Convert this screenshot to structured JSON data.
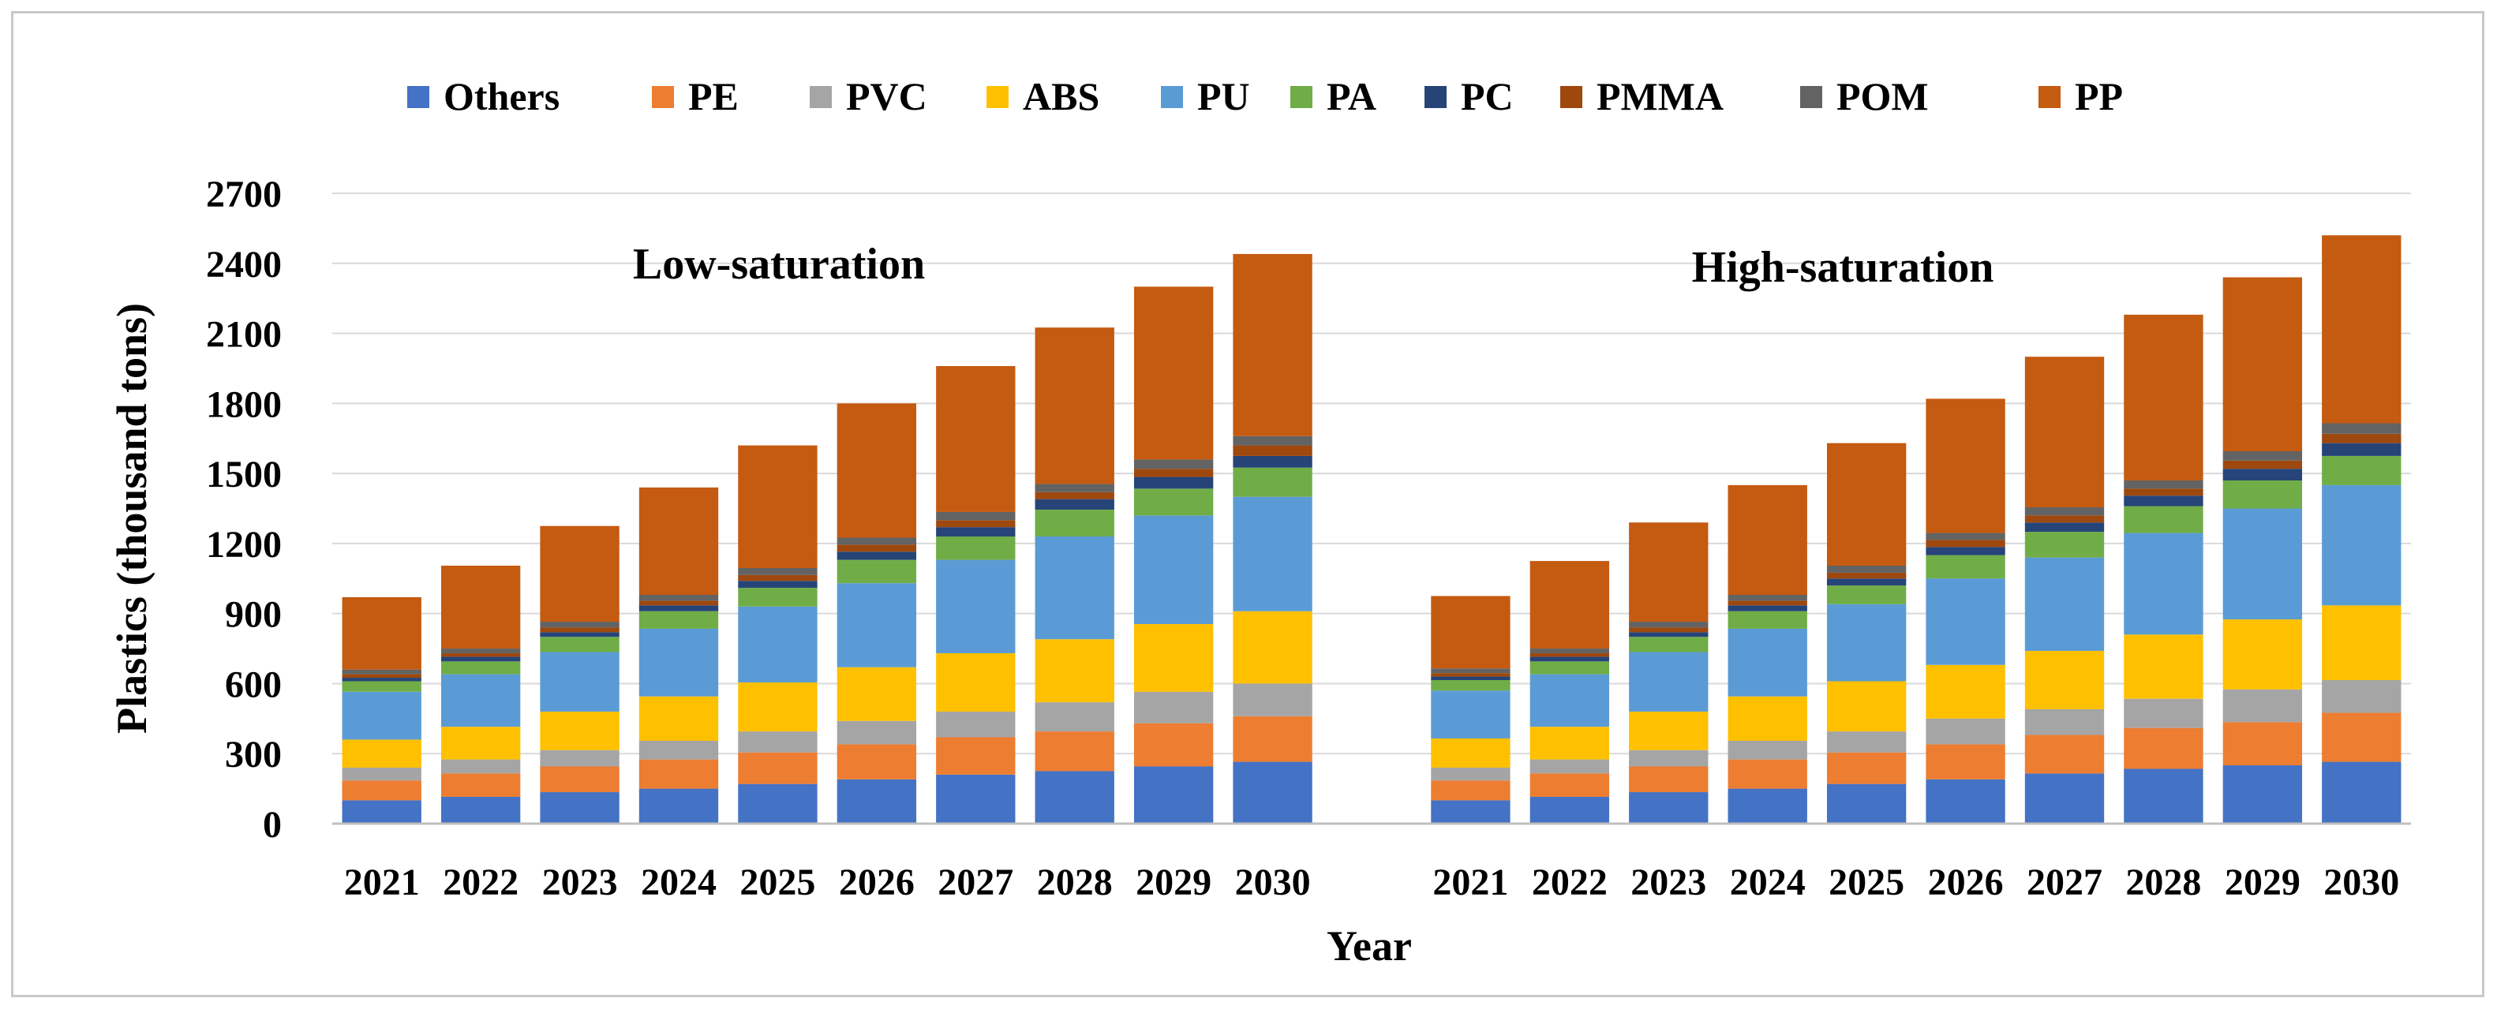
{
  "chart_data": {
    "type": "bar",
    "stacked": true,
    "ylabel": "Plastics (thousand tons)",
    "xlabel": "Year",
    "ylim": [
      0,
      2700
    ],
    "yticks": [
      0,
      300,
      600,
      900,
      1200,
      1500,
      1800,
      2100,
      2400,
      2700
    ],
    "grid": true,
    "legend_position": "top",
    "series_meta": [
      {
        "name": "Others",
        "color": "#4472C4"
      },
      {
        "name": "PE",
        "color": "#ED7D31"
      },
      {
        "name": "PVC",
        "color": "#A5A5A5"
      },
      {
        "name": "ABS",
        "color": "#FFC000"
      },
      {
        "name": "PU",
        "color": "#5B9BD5"
      },
      {
        "name": "PA",
        "color": "#70AD47"
      },
      {
        "name": "PC",
        "color": "#264478"
      },
      {
        "name": "PMMA",
        "color": "#9E480E"
      },
      {
        "name": "POM",
        "color": "#636363"
      },
      {
        "name": "PP",
        "color": "#C55A11"
      }
    ],
    "panels": [
      {
        "label": "Low-saturation",
        "categories": [
          "2021",
          "2022",
          "2023",
          "2024",
          "2025",
          "2026",
          "2027",
          "2028",
          "2029",
          "2030"
        ],
        "series": [
          {
            "name": "Others",
            "values": [
              100,
              115,
              135,
              150,
              170,
              190,
              210,
              225,
              245,
              265
            ]
          },
          {
            "name": "PE",
            "values": [
              85,
              100,
              110,
              125,
              135,
              150,
              160,
              170,
              185,
              195
            ]
          },
          {
            "name": "PVC",
            "values": [
              55,
              60,
              70,
              80,
              90,
              100,
              110,
              125,
              135,
              140
            ]
          },
          {
            "name": "ABS",
            "values": [
              120,
              140,
              165,
              190,
              210,
              230,
              250,
              270,
              290,
              310
            ]
          },
          {
            "name": "PU",
            "values": [
              205,
              225,
              255,
              290,
              325,
              360,
              400,
              440,
              465,
              490
            ]
          },
          {
            "name": "PA",
            "values": [
              45,
              55,
              65,
              75,
              80,
              100,
              100,
              115,
              115,
              125
            ]
          },
          {
            "name": "PC",
            "values": [
              15,
              20,
              20,
              25,
              30,
              35,
              40,
              45,
              50,
              50
            ]
          },
          {
            "name": "PMMA",
            "values": [
              15,
              15,
              20,
              20,
              25,
              30,
              30,
              30,
              35,
              45
            ]
          },
          {
            "name": "POM",
            "values": [
              20,
              20,
              25,
              25,
              30,
              30,
              35,
              35,
              40,
              40
            ]
          },
          {
            "name": "PP",
            "values": [
              310,
              355,
              410,
              460,
              525,
              575,
              625,
              670,
              740,
              780
            ]
          }
        ]
      },
      {
        "label": "High-saturation",
        "categories": [
          "2021",
          "2022",
          "2023",
          "2024",
          "2025",
          "2026",
          "2027",
          "2028",
          "2029",
          "2030"
        ],
        "series": [
          {
            "name": "Others",
            "values": [
              100,
              115,
              135,
              150,
              170,
              190,
              215,
              235,
              250,
              265
            ]
          },
          {
            "name": "PE",
            "values": [
              85,
              100,
              110,
              125,
              135,
              150,
              165,
              175,
              185,
              210
            ]
          },
          {
            "name": "PVC",
            "values": [
              55,
              60,
              70,
              80,
              90,
              110,
              110,
              125,
              140,
              140
            ]
          },
          {
            "name": "ABS",
            "values": [
              125,
              140,
              165,
              190,
              215,
              230,
              250,
              275,
              300,
              320
            ]
          },
          {
            "name": "PU",
            "values": [
              205,
              225,
              255,
              290,
              330,
              370,
              400,
              435,
              475,
              515
            ]
          },
          {
            "name": "PA",
            "values": [
              45,
              55,
              65,
              75,
              80,
              100,
              110,
              115,
              120,
              125
            ]
          },
          {
            "name": "PC",
            "values": [
              15,
              20,
              20,
              25,
              30,
              35,
              40,
              45,
              50,
              55
            ]
          },
          {
            "name": "PMMA",
            "values": [
              15,
              15,
              20,
              20,
              25,
              30,
              30,
              30,
              35,
              40
            ]
          },
          {
            "name": "POM",
            "values": [
              20,
              20,
              25,
              25,
              30,
              30,
              35,
              35,
              40,
              45
            ]
          },
          {
            "name": "PP",
            "values": [
              310,
              375,
              425,
              470,
              525,
              575,
              645,
              710,
              745,
              805
            ]
          }
        ]
      }
    ]
  }
}
